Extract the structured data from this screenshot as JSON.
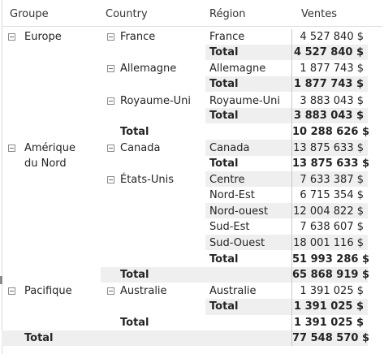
{
  "headers": {
    "groupe": "Groupe",
    "country": "Country",
    "region": "Région",
    "ventes": "Ventes"
  },
  "groups": {
    "europe": {
      "label": "Europe",
      "total_label": "Total",
      "total": "10 288 626 $"
    },
    "amerique": {
      "label_line1": "Amérique",
      "label_line2": "du Nord",
      "total_label": "Total",
      "total": "65 868 919 $"
    },
    "pacifique": {
      "label": "Pacifique",
      "total_label": "Total",
      "total": "1 391 025 $"
    }
  },
  "countries": {
    "france": {
      "label": "France",
      "total_label": "Total",
      "total": "4 527 840 $",
      "regions": [
        {
          "name": "France",
          "value": "4 527 840 $"
        }
      ]
    },
    "allemagne": {
      "label": "Allemagne",
      "total_label": "Total",
      "total": "1 877 743 $",
      "regions": [
        {
          "name": "Allemagne",
          "value": "1 877 743 $"
        }
      ]
    },
    "royaume_uni": {
      "label": "Royaume-Uni",
      "total_label": "Total",
      "total": "3 883 043 $",
      "regions": [
        {
          "name": "Royaume-Uni",
          "value": "3 883 043 $"
        }
      ]
    },
    "canada": {
      "label": "Canada",
      "total_label": "Total",
      "total": "13 875 633 $",
      "regions": [
        {
          "name": "Canada",
          "value": "13 875 633 $"
        }
      ]
    },
    "etats_unis": {
      "label": "États-Unis",
      "total_label": "Total",
      "total": "51 993 286 $",
      "regions": [
        {
          "name": "Centre",
          "value": "7 633 387 $"
        },
        {
          "name": "Nord-Est",
          "value": "6 715 354 $"
        },
        {
          "name": "Nord-ouest",
          "value": "12 004 822 $"
        },
        {
          "name": "Sud-Est",
          "value": "7 638 607 $"
        },
        {
          "name": "Sud-Ouest",
          "value": "18 001 116 $"
        }
      ]
    },
    "australie": {
      "label": "Australie",
      "total_label": "Total",
      "total": "1 391 025 $",
      "regions": [
        {
          "name": "Australie",
          "value": "1 391 025 $"
        }
      ]
    }
  },
  "grand_total": {
    "label": "Total",
    "value": "77 548 570 $"
  }
}
